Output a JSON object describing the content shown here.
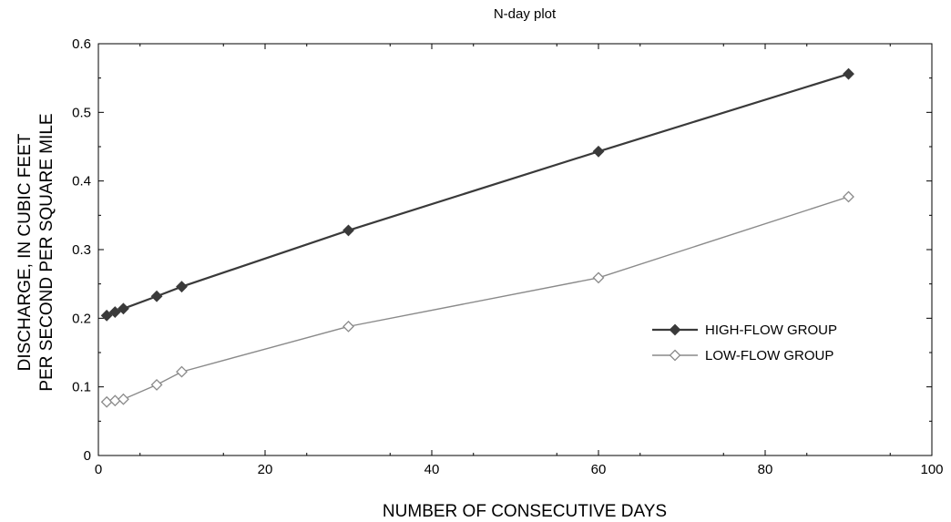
{
  "chart_data": {
    "type": "line",
    "title": "N-day plot",
    "xlabel": "NUMBER OF CONSECUTIVE DAYS",
    "ylabel_lines": [
      "DISCHARGE, IN CUBIC FEET",
      "PER SECOND PER SQUARE MILE"
    ],
    "xlim": [
      0,
      100
    ],
    "ylim": [
      0,
      0.6
    ],
    "xticks": [
      "0",
      "20",
      "40",
      "60",
      "80",
      "100"
    ],
    "yticks": [
      "0",
      "0.1",
      "0.2",
      "0.3",
      "0.4",
      "0.5",
      "0.6"
    ],
    "grid": false,
    "legend_position": "center-right",
    "series": [
      {
        "name": "HIGH-FLOW GROUP",
        "color": "#3a3a3a",
        "marker": "filled-diamond",
        "x": [
          1,
          2,
          3,
          7,
          10,
          30,
          60,
          90
        ],
        "y": [
          0.204,
          0.209,
          0.214,
          0.232,
          0.246,
          0.328,
          0.443,
          0.556
        ]
      },
      {
        "name": "LOW-FLOW GROUP",
        "color": "#8a8a8a",
        "marker": "open-diamond",
        "x": [
          1,
          2,
          3,
          7,
          10,
          30,
          60,
          90
        ],
        "y": [
          0.078,
          0.08,
          0.082,
          0.103,
          0.122,
          0.188,
          0.259,
          0.377
        ]
      }
    ]
  }
}
